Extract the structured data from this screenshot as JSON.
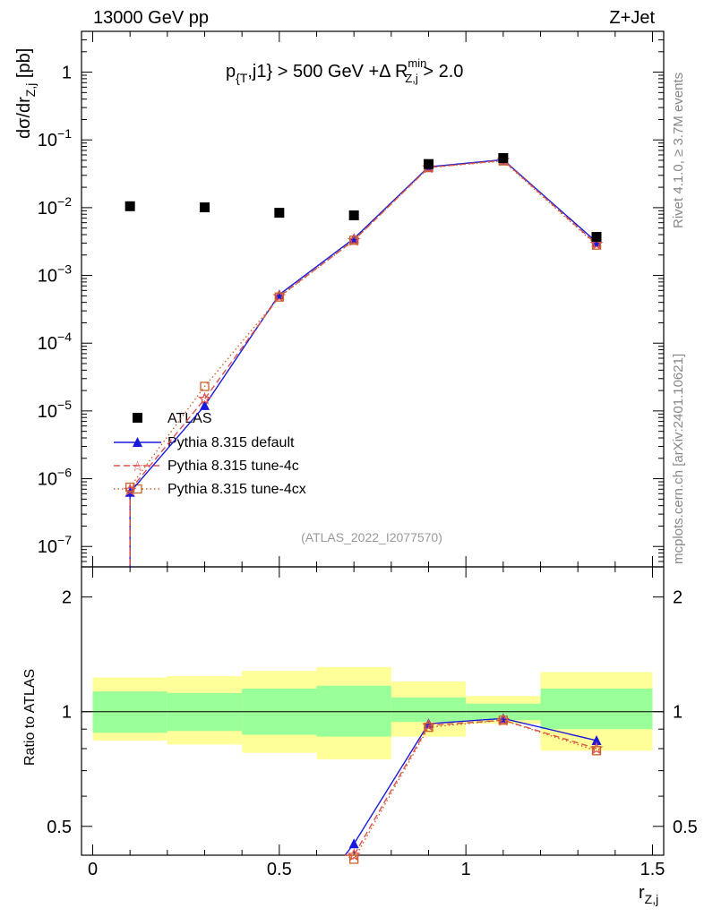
{
  "header": {
    "left": "13000 GeV pp",
    "right": "Z+Jet",
    "cut_label": "p",
    "cut_sub": "{T",
    "cut_mid": ",j1} > 500 GeV +Δ R",
    "cut_sup": "min",
    "cut_sub2": "Z,j",
    "cut_tail": " > 2.0"
  },
  "side_labels": {
    "rivet": "Rivet 4.1.0, ≥ 3.7M events",
    "mcplots": "mcplots.cern.ch [arXiv:2401.10621]"
  },
  "analysis_id": "(ATLAS_2022_I2077570)",
  "axes": {
    "ylabel_main": "dσ/dr",
    "ylabel_main_sub": "Z,j",
    "ylabel_main_unit": " [pb]",
    "ylabel_ratio": "Ratio to ATLAS",
    "xlabel": "r",
    "xlabel_sub": "Z,j",
    "xticks": [
      "0",
      "0.5",
      "1",
      "1.5"
    ],
    "yticks_main": [
      {
        "base": "10",
        "exp": "−7",
        "v": -7
      },
      {
        "base": "10",
        "exp": "−6",
        "v": -6
      },
      {
        "base": "10",
        "exp": "−5",
        "v": -5
      },
      {
        "base": "10",
        "exp": "−4",
        "v": -4
      },
      {
        "base": "10",
        "exp": "−3",
        "v": -3
      },
      {
        "base": "10",
        "exp": "−2",
        "v": -2
      },
      {
        "base": "10",
        "exp": "−1",
        "v": -1
      },
      {
        "base": "1",
        "exp": "",
        "v": 0
      }
    ],
    "yticks_ratio": [
      "0.5",
      "1",
      "2"
    ]
  },
  "chart_data": {
    "type": "scatter",
    "x": [
      0.1,
      0.3,
      0.5,
      0.7,
      0.9,
      1.1,
      1.35
    ],
    "xlim": [
      -0.03,
      1.53
    ],
    "ylim_main": [
      5e-08,
      4
    ],
    "ylim_ratio": [
      0.42,
      2.4
    ],
    "bins": [
      [
        0,
        0.2
      ],
      [
        0.2,
        0.4
      ],
      [
        0.4,
        0.6
      ],
      [
        0.6,
        0.8
      ],
      [
        0.8,
        1.0
      ],
      [
        1.0,
        1.2
      ],
      [
        1.2,
        1.5
      ]
    ],
    "band_inner": [
      [
        0.88,
        1.13
      ],
      [
        0.89,
        1.12
      ],
      [
        0.87,
        1.15
      ],
      [
        0.86,
        1.17
      ],
      [
        0.94,
        1.09
      ],
      [
        0.95,
        1.05
      ],
      [
        0.9,
        1.15
      ]
    ],
    "band_outer": [
      [
        0.84,
        1.23
      ],
      [
        0.82,
        1.24
      ],
      [
        0.78,
        1.28
      ],
      [
        0.75,
        1.31
      ],
      [
        0.86,
        1.2
      ],
      [
        0.93,
        1.1
      ],
      [
        0.79,
        1.27
      ]
    ],
    "series": [
      {
        "name": "ATLAS",
        "color": "#000000",
        "marker": "square",
        "values": [
          0.0105,
          0.0101,
          0.0084,
          0.0077,
          0.044,
          0.054,
          0.0037
        ]
      },
      {
        "name": "Pythia 8.315 default",
        "color": "#1a1adb",
        "marker": "triangle",
        "line": "solid",
        "values": [
          6.3e-07,
          1.2e-05,
          0.00052,
          0.0035,
          0.04,
          0.051,
          0.0031
        ],
        "ratio": [
          null,
          null,
          null,
          0.45,
          0.93,
          0.96,
          0.84
        ]
      },
      {
        "name": "Pythia 8.315 tune-4c",
        "color": "#e05050",
        "marker": "star",
        "line": "dashed",
        "values": [
          6.8e-07,
          1.5e-05,
          0.00049,
          0.0033,
          0.039,
          0.05,
          0.0029
        ],
        "ratio": [
          null,
          null,
          null,
          0.42,
          0.92,
          0.95,
          0.8
        ]
      },
      {
        "name": "Pythia 8.315 tune-4cx",
        "color": "#c86428",
        "marker": "opensquare",
        "line": "dotted",
        "values": [
          7.5e-07,
          2.3e-05,
          0.00048,
          0.0033,
          0.039,
          0.049,
          0.0028
        ],
        "ratio": [
          null,
          null,
          null,
          0.41,
          0.91,
          0.95,
          0.79
        ]
      }
    ]
  }
}
